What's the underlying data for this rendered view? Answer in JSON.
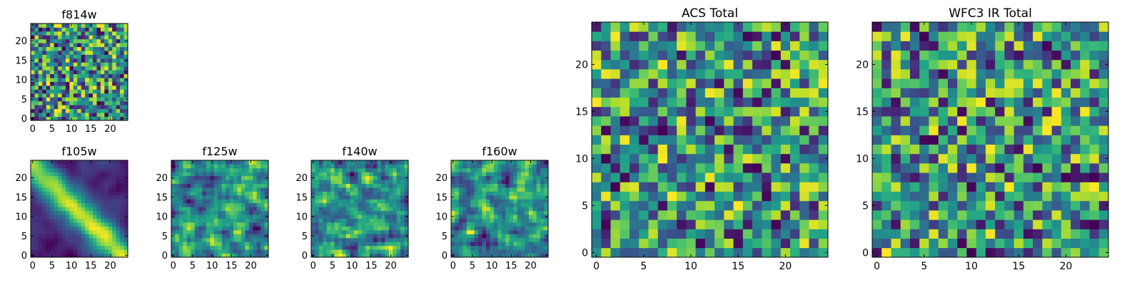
{
  "colormap": "viridis",
  "chart_data": [
    {
      "type": "heatmap",
      "id": "f814w",
      "title": "f814w",
      "rows": 25,
      "cols": 25,
      "smoothness": 0,
      "xticks": [
        "0",
        "5",
        "10",
        "15",
        "20"
      ],
      "yticks": [
        "0",
        "5",
        "10",
        "15",
        "20"
      ],
      "xlim": [
        -0.5,
        24.5
      ],
      "ylim": [
        -0.5,
        24.5
      ]
    },
    {
      "type": "heatmap",
      "id": "f105w",
      "title": "f105w",
      "rows": 25,
      "cols": 25,
      "smoothness": 2,
      "features": "bright diagonal band from upper-left to lower-right",
      "xticks": [
        "0",
        "5",
        "10",
        "15",
        "20"
      ],
      "yticks": [
        "0",
        "5",
        "10",
        "15",
        "20"
      ],
      "xlim": [
        -0.5,
        24.5
      ],
      "ylim": [
        -0.5,
        24.5
      ]
    },
    {
      "type": "heatmap",
      "id": "f125w",
      "title": "f125w",
      "rows": 25,
      "cols": 25,
      "smoothness": 1,
      "xticks": [
        "0",
        "5",
        "10",
        "15",
        "20"
      ],
      "yticks": [
        "0",
        "5",
        "10",
        "15",
        "20"
      ],
      "xlim": [
        -0.5,
        24.5
      ],
      "ylim": [
        -0.5,
        24.5
      ]
    },
    {
      "type": "heatmap",
      "id": "f140w",
      "title": "f140w",
      "rows": 25,
      "cols": 25,
      "smoothness": 1,
      "xticks": [
        "0",
        "5",
        "10",
        "15",
        "20"
      ],
      "yticks": [
        "0",
        "5",
        "10",
        "15",
        "20"
      ],
      "xlim": [
        -0.5,
        24.5
      ],
      "ylim": [
        -0.5,
        24.5
      ]
    },
    {
      "type": "heatmap",
      "id": "f160w",
      "title": "f160w",
      "rows": 25,
      "cols": 25,
      "smoothness": 1,
      "xticks": [
        "0",
        "5",
        "10",
        "15",
        "20"
      ],
      "yticks": [
        "0",
        "5",
        "10",
        "15",
        "20"
      ],
      "xlim": [
        -0.5,
        24.5
      ],
      "ylim": [
        -0.5,
        24.5
      ]
    },
    {
      "type": "heatmap",
      "id": "acs-total",
      "title": "ACS Total",
      "rows": 25,
      "cols": 25,
      "smoothness": 0,
      "xticks": [
        "0",
        "5",
        "10",
        "15",
        "20"
      ],
      "yticks": [
        "0",
        "5",
        "10",
        "15",
        "20"
      ],
      "xlim": [
        -0.5,
        24.5
      ],
      "ylim": [
        -0.5,
        24.5
      ]
    },
    {
      "type": "heatmap",
      "id": "wfc3-ir-total",
      "title": "WFC3 IR Total",
      "rows": 25,
      "cols": 25,
      "smoothness": 0,
      "xticks": [
        "0",
        "5",
        "10",
        "15",
        "20"
      ],
      "yticks": [
        "0",
        "5",
        "10",
        "15",
        "20"
      ],
      "xlim": [
        -0.5,
        24.5
      ],
      "ylim": [
        -0.5,
        24.5
      ]
    }
  ]
}
